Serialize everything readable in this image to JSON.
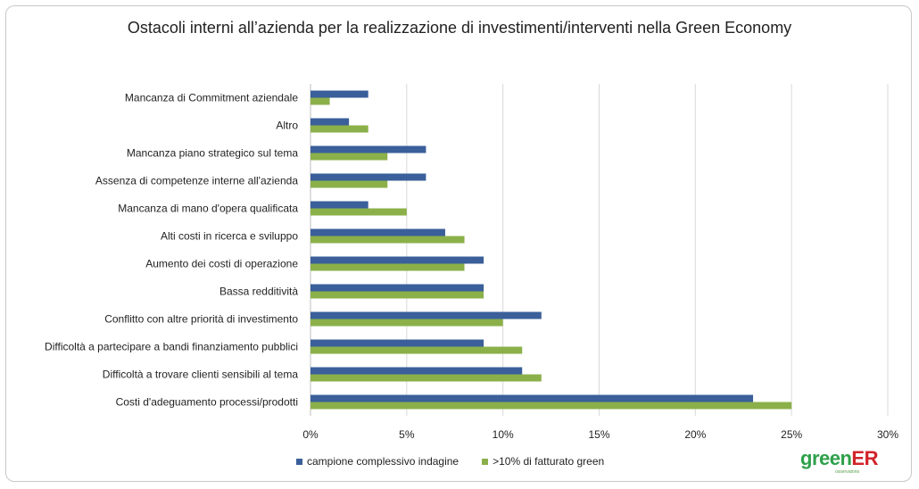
{
  "chart_data": {
    "type": "bar",
    "orientation": "horizontal",
    "title": "Ostacoli interni all’azienda per la realizzazione di investimenti/interventi nella Green Economy",
    "categories": [
      "Mancanza di Commitment aziendale",
      "Altro",
      "Mancanza piano strategico sul tema",
      "Assenza di competenze interne all'azienda",
      "Mancanza di mano d'opera qualificata",
      "Alti costi in ricerca e sviluppo",
      "Aumento dei costi di operazione",
      "Bassa redditività",
      "Conflitto con altre priorità di investimento",
      "Difficoltà a partecipare a bandi finanziamento pubblici",
      "Difficoltà a trovare clienti sensibili al tema",
      "Costi d'adeguamento processi/prodotti"
    ],
    "series": [
      {
        "name": "campione complessivo indagine",
        "color": "#3a5f9a",
        "values": [
          3,
          2,
          6,
          6,
          3,
          7,
          9,
          9,
          12,
          9,
          11,
          23
        ]
      },
      {
        "name": ">10% di fatturato green",
        "color": "#8bb04a",
        "values": [
          1,
          3,
          4,
          4,
          5,
          8,
          8,
          9,
          10,
          11,
          12,
          25
        ]
      }
    ],
    "xlim": [
      0,
      30
    ],
    "xticks": [
      "0%",
      "5%",
      "10%",
      "15%",
      "20%",
      "25%",
      "30%"
    ],
    "xtick_values": [
      0,
      5,
      10,
      15,
      20,
      25,
      30
    ],
    "grid": "vertical",
    "legend_position": "bottom-left"
  },
  "logo": {
    "text_green": "green",
    "text_red": "ER",
    "subtext": "osservatorio",
    "color_green": "#2ea04a",
    "color_red": "#d2232a"
  }
}
